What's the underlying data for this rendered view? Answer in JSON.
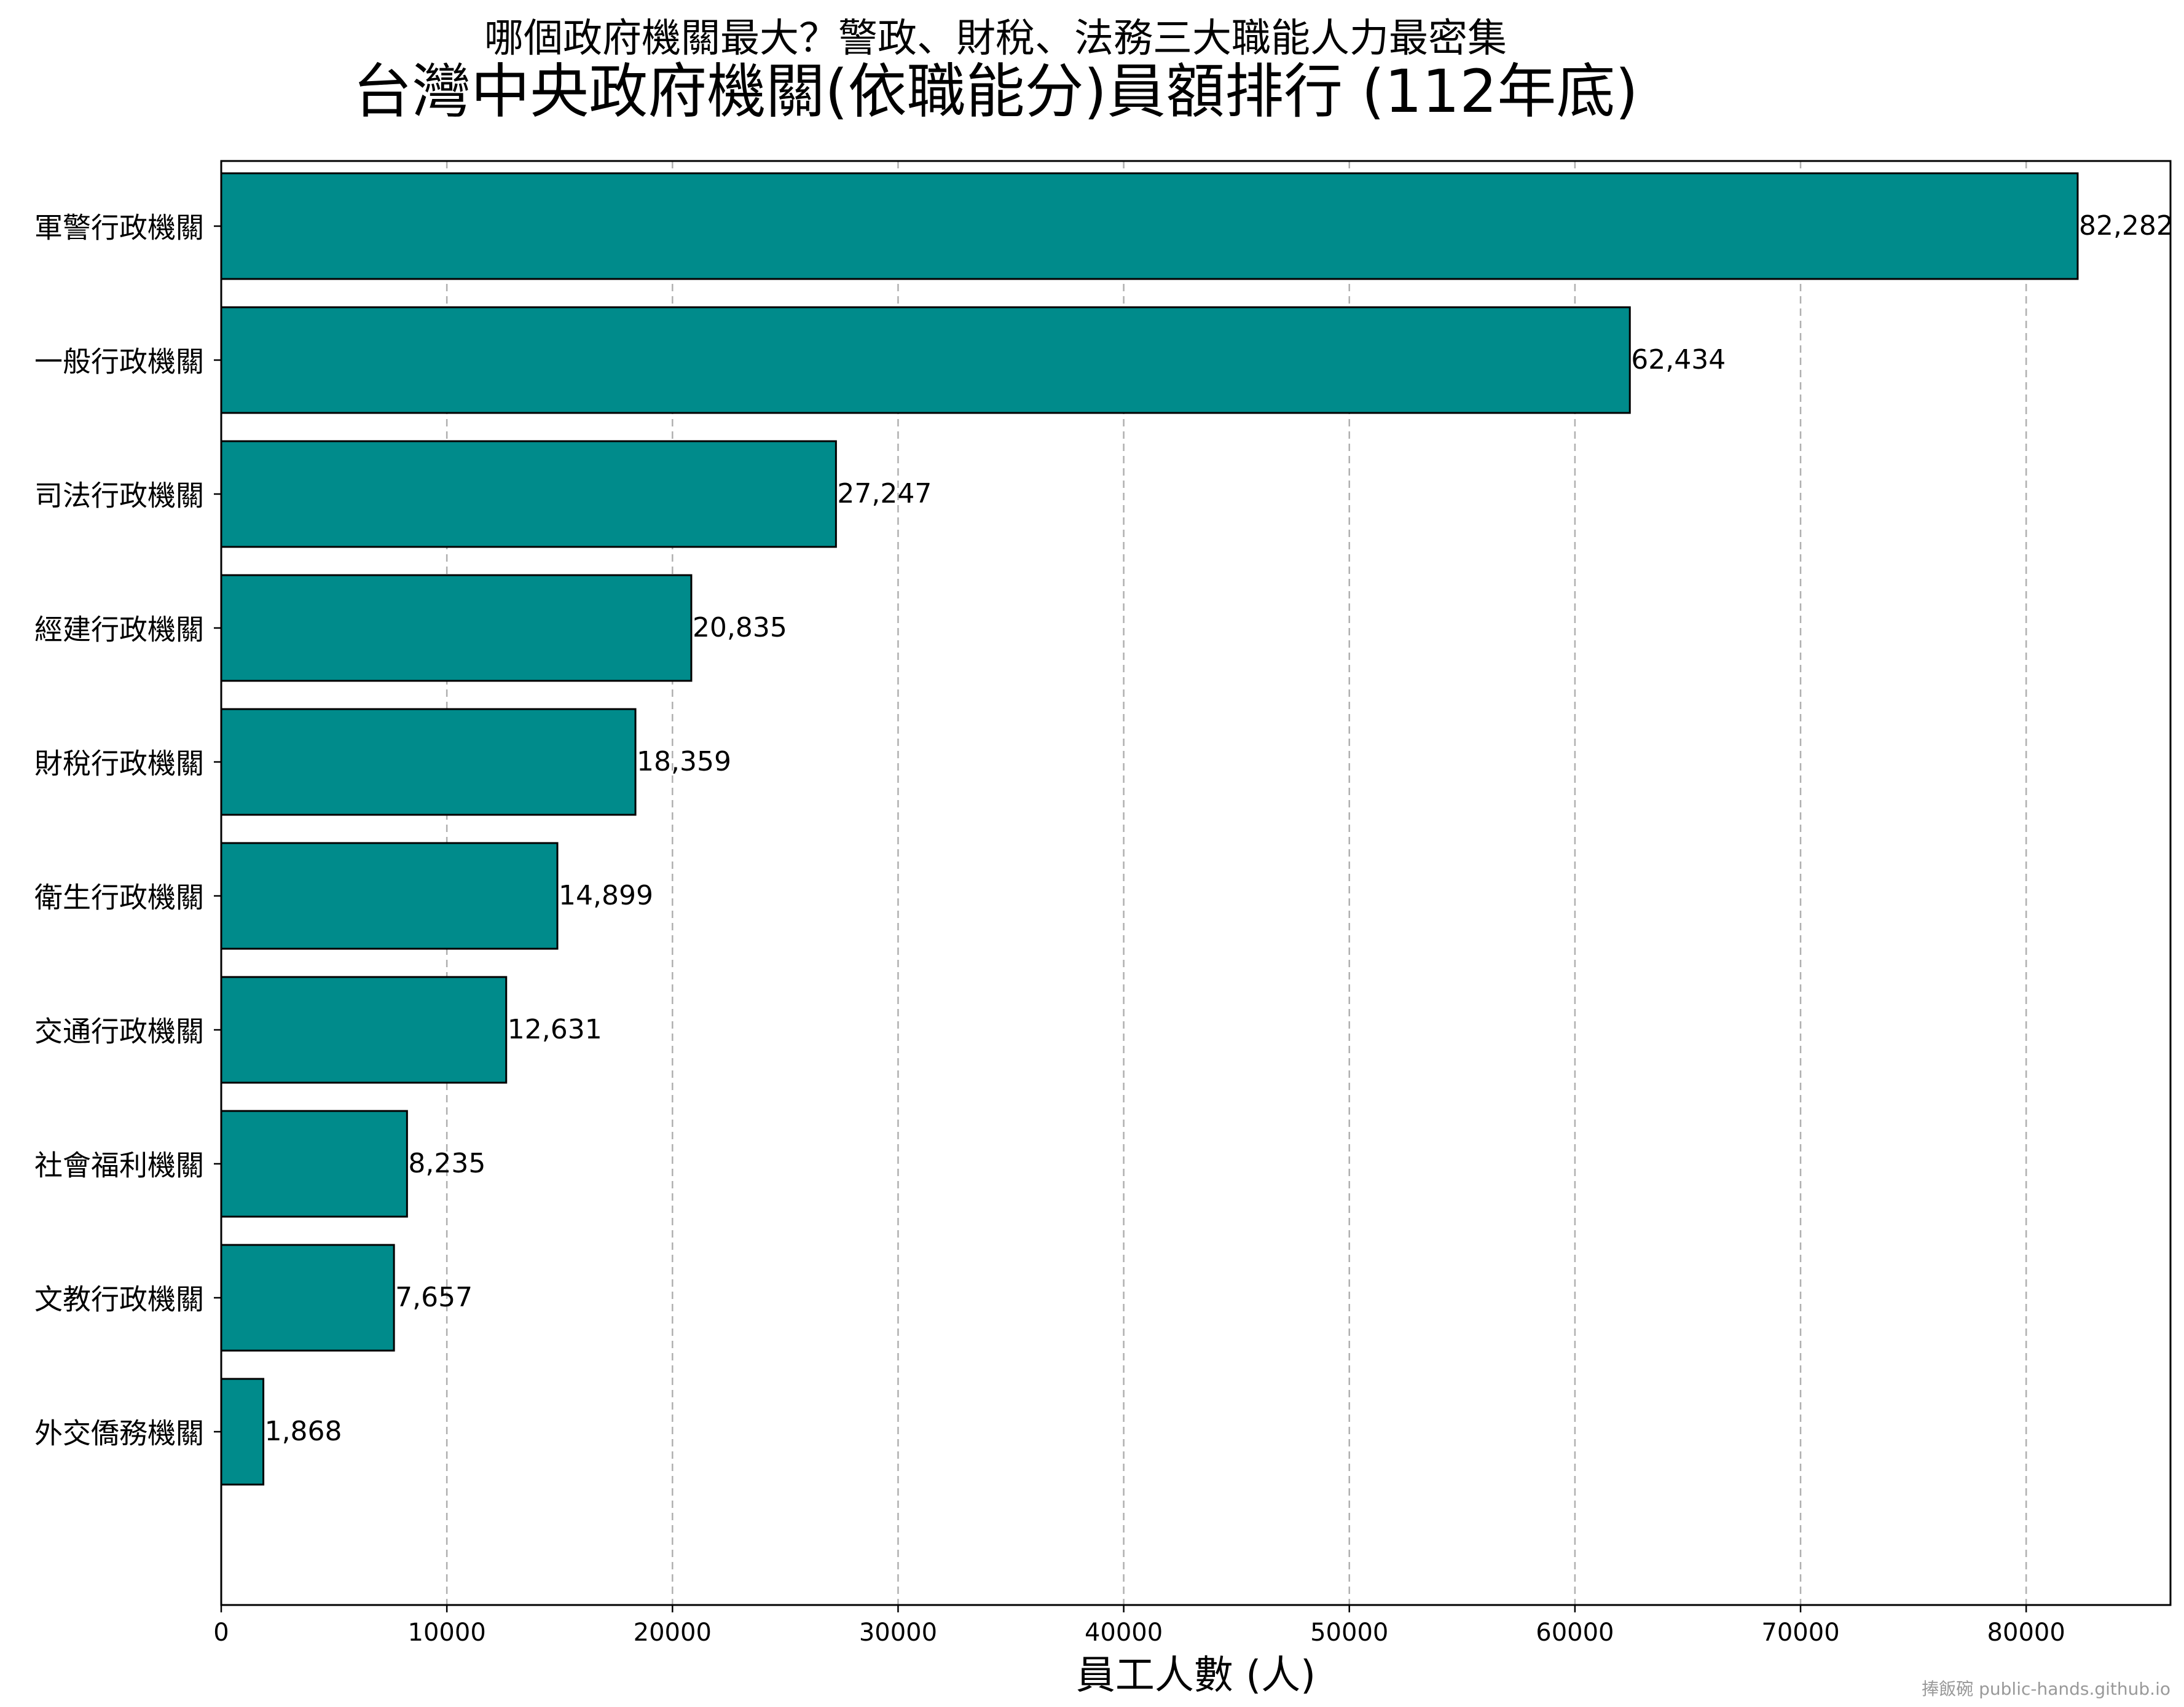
{
  "chart_data": {
    "type": "bar",
    "orientation": "horizontal",
    "suptitle": "哪個政府機關最大？警政、財稅、法務三大職能人力最密集",
    "title": "台灣中央政府機關(依職能分)員額排行 (112年底)",
    "xlabel": "員工人數 (人)",
    "ylabel": "",
    "categories": [
      "軍警行政機關",
      "一般行政機關",
      "司法行政機關",
      "經建行政機關",
      "財稅行政機關",
      "衛生行政機關",
      "交通行政機關",
      "社會福利機關",
      "文教行政機關",
      "外交僑務機關"
    ],
    "values": [
      82282,
      62434,
      27247,
      20835,
      18359,
      14899,
      12631,
      8235,
      7657,
      1868
    ],
    "value_labels": [
      "82,282",
      "62,434",
      "27,247",
      "20,835",
      "18,359",
      "14,899",
      "12,631",
      "8,235",
      "7,657",
      "1,868"
    ],
    "xticks": [
      0,
      10000,
      20000,
      30000,
      40000,
      50000,
      60000,
      70000,
      80000
    ],
    "xtick_labels": [
      "0",
      "10000",
      "20000",
      "30000",
      "40000",
      "50000",
      "60000",
      "70000",
      "80000"
    ],
    "xlim": [
      0,
      86396
    ],
    "grid": "x-dashed",
    "bar_color": "#008b8b",
    "bar_edge_color": "#000000",
    "credit": "捧飯碗 public-hands.github.io"
  }
}
